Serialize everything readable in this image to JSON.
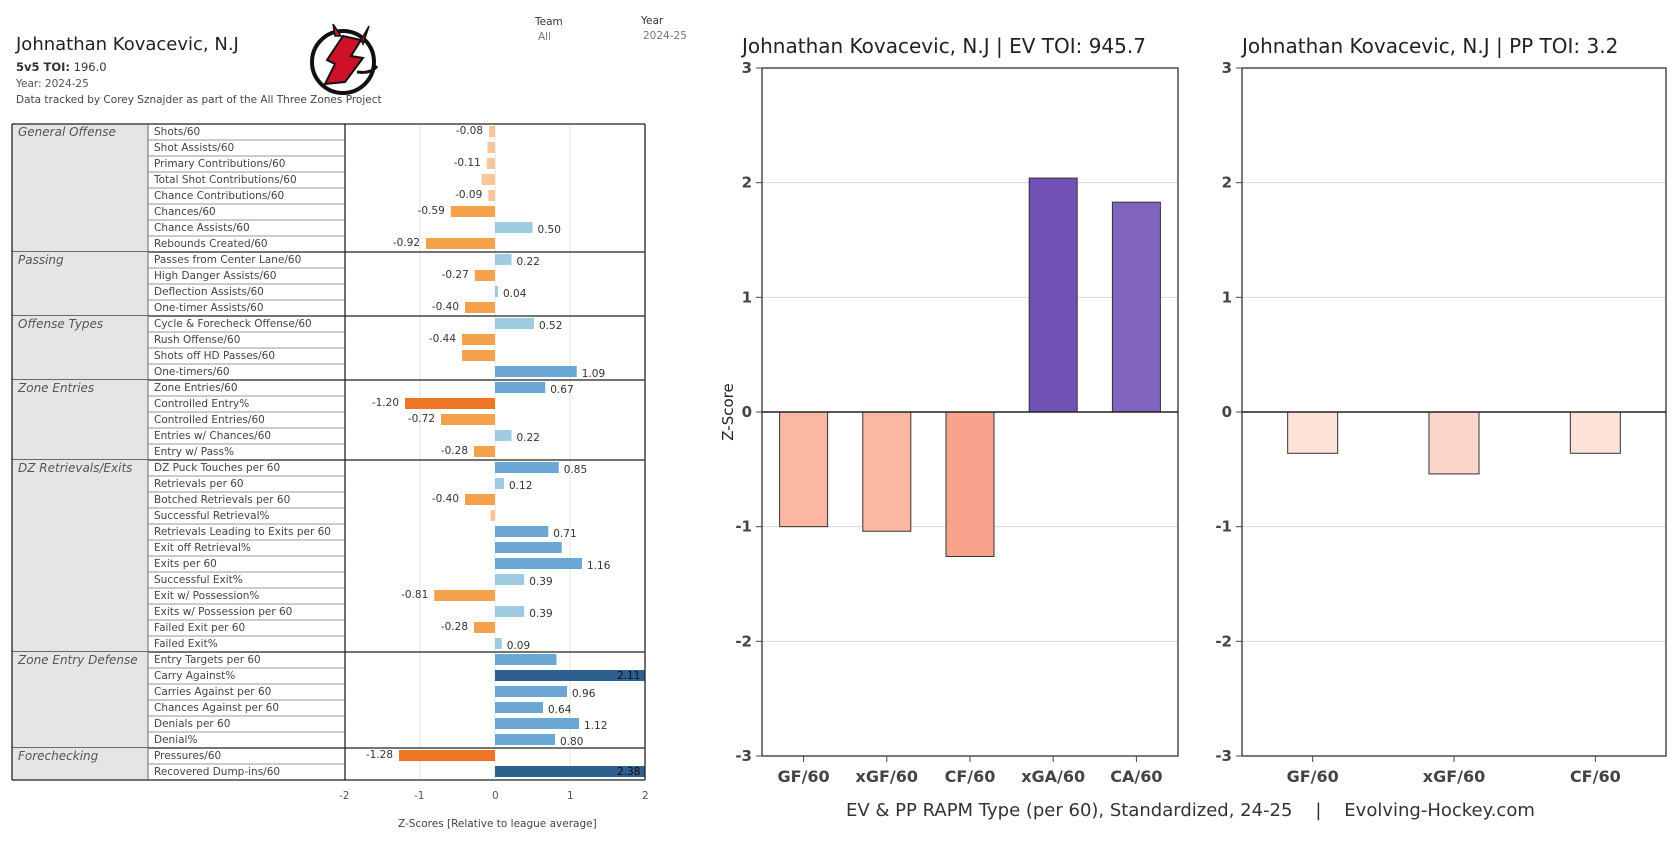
{
  "header": {
    "player": "Johnathan Kovacevic, N.J",
    "toi_label": "5v5 TOI:",
    "toi_value": "196.0",
    "year_line": "Year: 2024-25",
    "credit": "Data tracked by Corey Sznajder as part of the All Three Zones Project",
    "filters": [
      {
        "label": "Team",
        "value": "All"
      },
      {
        "label": "Year",
        "value": "2024-25"
      }
    ]
  },
  "colors": {
    "neg_strong": "#ee7426",
    "neg_mid": "#f5a04a",
    "neg_light": "#f7c79a",
    "pos_light": "#9ecbe3",
    "pos_mid": "#6aa7d4",
    "pos_strong": "#2d5f8f",
    "ev_neg": "#fbb7a2",
    "ev_neg2": "#f9a28b",
    "xga": "#7151b5",
    "ca": "#7f63bd",
    "pp_neg": "#fde2da",
    "pp_neg2": "#fcd5ca"
  },
  "chart_data": [
    {
      "type": "bar",
      "orientation": "horizontal",
      "xlabel": "Z-Scores [Relative to league average]",
      "xlim": [
        -2,
        2
      ],
      "xticks": [
        "-2",
        "-1",
        "0",
        "1",
        "2"
      ],
      "groups": [
        {
          "category": "General Offense",
          "metrics": [
            {
              "name": "Shots/60",
              "value": -0.08,
              "label": "-0.08"
            },
            {
              "name": "Shot Assists/60",
              "value": -0.1,
              "label": ""
            },
            {
              "name": "Primary Contributions/60",
              "value": -0.11,
              "label": "-0.11"
            },
            {
              "name": "Total Shot Contributions/60",
              "value": -0.18,
              "label": ""
            },
            {
              "name": "Chance Contributions/60",
              "value": -0.09,
              "label": "-0.09"
            },
            {
              "name": "Chances/60",
              "value": -0.59,
              "label": "-0.59"
            },
            {
              "name": "Chance Assists/60",
              "value": 0.5,
              "label": "0.50"
            },
            {
              "name": "Rebounds Created/60",
              "value": -0.92,
              "label": "-0.92"
            }
          ]
        },
        {
          "category": "Passing",
          "metrics": [
            {
              "name": "Passes from Center Lane/60",
              "value": 0.22,
              "label": "0.22"
            },
            {
              "name": "High Danger Assists/60",
              "value": -0.27,
              "label": "-0.27"
            },
            {
              "name": "Deflection Assists/60",
              "value": 0.04,
              "label": "0.04"
            },
            {
              "name": "One-timer Assists/60",
              "value": -0.4,
              "label": "-0.40"
            }
          ]
        },
        {
          "category": "Offense Types",
          "metrics": [
            {
              "name": "Cycle & Forecheck Offense/60",
              "value": 0.52,
              "label": "0.52"
            },
            {
              "name": "Rush Offense/60",
              "value": -0.44,
              "label": "-0.44"
            },
            {
              "name": "Shots off HD Passes/60",
              "value": -0.44,
              "label": ""
            },
            {
              "name": "One-timers/60",
              "value": 1.09,
              "label": "1.09"
            }
          ]
        },
        {
          "category": "Zone Entries",
          "metrics": [
            {
              "name": "Zone Entries/60",
              "value": 0.67,
              "label": "0.67"
            },
            {
              "name": "Controlled Entry%",
              "value": -1.2,
              "label": "-1.20"
            },
            {
              "name": "Controlled Entries/60",
              "value": -0.72,
              "label": "-0.72"
            },
            {
              "name": "Entries w/ Chances/60",
              "value": 0.22,
              "label": "0.22"
            },
            {
              "name": "Entry w/ Pass%",
              "value": -0.28,
              "label": "-0.28"
            }
          ]
        },
        {
          "category": "DZ Retrievals/Exits",
          "metrics": [
            {
              "name": "DZ Puck Touches per 60",
              "value": 0.85,
              "label": "0.85"
            },
            {
              "name": "Retrievals per 60",
              "value": 0.12,
              "label": "0.12"
            },
            {
              "name": "Botched Retrievals per 60",
              "value": -0.4,
              "label": "-0.40"
            },
            {
              "name": "Successful Retrieval%",
              "value": -0.06,
              "label": ""
            },
            {
              "name": "Retrievals Leading to Exits per 60",
              "value": 0.71,
              "label": "0.71"
            },
            {
              "name": "Exit off Retrieval%",
              "value": 0.89,
              "label": ""
            },
            {
              "name": "Exits per 60",
              "value": 1.16,
              "label": "1.16"
            },
            {
              "name": "Successful Exit%",
              "value": 0.39,
              "label": "0.39"
            },
            {
              "name": "Exit w/ Possession%",
              "value": -0.81,
              "label": "-0.81"
            },
            {
              "name": "Exits w/ Possession per 60",
              "value": 0.39,
              "label": "0.39"
            },
            {
              "name": "Failed Exit per 60",
              "value": -0.28,
              "label": "-0.28"
            },
            {
              "name": "Failed Exit%",
              "value": 0.09,
              "label": "0.09"
            }
          ]
        },
        {
          "category": "Zone Entry Defense",
          "metrics": [
            {
              "name": "Entry Targets per 60",
              "value": 0.82,
              "label": ""
            },
            {
              "name": "Carry Against%",
              "value": 2.11,
              "label": "2.11"
            },
            {
              "name": "Carries Against per 60",
              "value": 0.96,
              "label": "0.96"
            },
            {
              "name": "Chances Against per 60",
              "value": 0.64,
              "label": "0.64"
            },
            {
              "name": "Denials per 60",
              "value": 1.12,
              "label": "1.12"
            },
            {
              "name": "Denial%",
              "value": 0.8,
              "label": "0.80"
            }
          ]
        },
        {
          "category": "Forechecking",
          "metrics": [
            {
              "name": "Pressures/60",
              "value": -1.28,
              "label": "-1.28"
            },
            {
              "name": "Recovered Dump-ins/60",
              "value": 2.38,
              "label": "2.38"
            }
          ]
        }
      ]
    },
    {
      "type": "bar",
      "title": "Johnathan Kovacevic, N.J  |  EV TOI: 945.7",
      "ylabel": "Z-Score",
      "ylim": [
        -3,
        3
      ],
      "yticks": [
        "3",
        "2",
        "1",
        "0",
        "-1",
        "-2",
        "-3"
      ],
      "categories": [
        "GF/60",
        "xGF/60",
        "CF/60",
        "xGA/60",
        "CA/60"
      ],
      "values": [
        -1.0,
        -1.04,
        -1.26,
        2.04,
        1.83
      ]
    },
    {
      "type": "bar",
      "title": "Johnathan Kovacevic, N.J  |  PP TOI: 3.2",
      "ylim": [
        -3,
        3
      ],
      "yticks": [
        "3",
        "2",
        "1",
        "0",
        "-1",
        "-2",
        "-3"
      ],
      "categories": [
        "GF/60",
        "xGF/60",
        "CF/60"
      ],
      "values": [
        -0.36,
        -0.54,
        -0.36
      ]
    }
  ],
  "footer": "EV & PP RAPM Type (per 60), Standardized, 24-25    |    Evolving-Hockey.com"
}
